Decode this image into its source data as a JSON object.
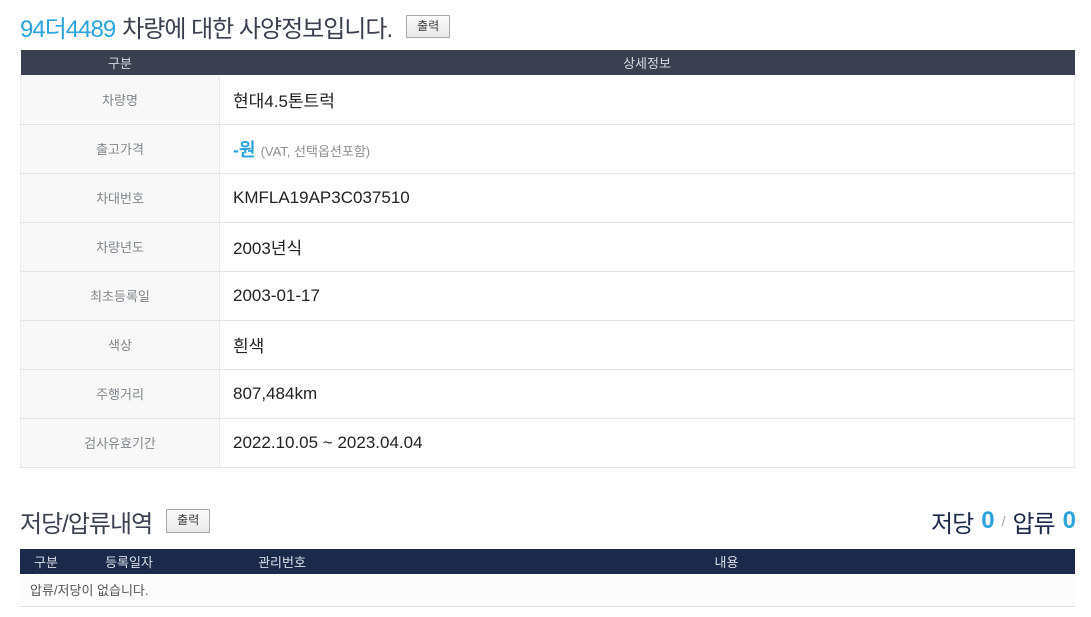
{
  "header": {
    "plate_number": "94더4489",
    "title_rest": "차량에 대한 사양정보입니다.",
    "print_button": "출력"
  },
  "spec_table": {
    "col_category": "구분",
    "col_detail": "상세정보",
    "rows": [
      {
        "label": "차량명",
        "value": "현대4.5톤트럭"
      },
      {
        "label": "출고가격",
        "value": "-원",
        "note": "(VAT, 선택옵션포함)"
      },
      {
        "label": "차대번호",
        "value": "KMFLA19AP3C037510"
      },
      {
        "label": "차량년도",
        "value": "2003년식"
      },
      {
        "label": "최초등록일",
        "value": "2003-01-17"
      },
      {
        "label": "색상",
        "value": "흰색"
      },
      {
        "label": "주행거리",
        "value": "807,484km"
      },
      {
        "label": "검사유효기간",
        "value": "2022.10.05 ~ 2023.04.04"
      }
    ]
  },
  "lien_section": {
    "title": "저당/압류내역",
    "print_button": "출력",
    "summary": {
      "mortgage_label": "저당",
      "mortgage_count": "0",
      "separator": "/",
      "seizure_label": "압류",
      "seizure_count": "0"
    },
    "table": {
      "col_category": "구분",
      "col_reg_date": "등록일자",
      "col_mgmt_no": "관리번호",
      "col_content": "내용",
      "empty_message": "압류/저당이 없습니다."
    }
  },
  "colors": {
    "accent_blue": "#2ba3dc",
    "spec_header_bg": "#3a4050",
    "lien_header_bg": "#1b2a4a"
  }
}
